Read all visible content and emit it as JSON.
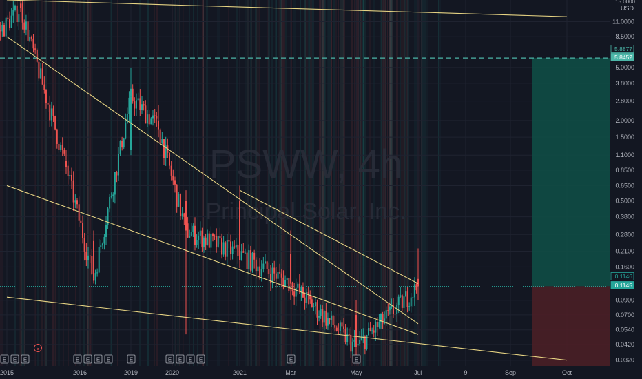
{
  "chart_data": {
    "type": "candlestick",
    "title": "",
    "watermark": {
      "symbol": "PSWW, 4h",
      "company": "Principal Solar, Inc."
    },
    "yaxis": {
      "scale": "log",
      "currency": "USD",
      "top_label": "15.0000",
      "ticks": [
        "11.0000",
        "8.5000",
        "5.0000",
        "3.8000",
        "2.8000",
        "2.0000",
        "1.5000",
        "1.1000",
        "0.8500",
        "0.6500",
        "0.5000",
        "0.3800",
        "0.2800",
        "0.2100",
        "0.1600",
        "0.0900",
        "0.0700",
        "0.0540",
        "0.0420",
        "0.0320"
      ],
      "range": [
        0.029,
        16
      ]
    },
    "xaxis": {
      "ticks": [
        "2015",
        "2016",
        "2019",
        "2020",
        "2021",
        "Mar",
        "May",
        "Jul",
        "9",
        "Sep",
        "Oct"
      ]
    },
    "price_labels": {
      "target_high": "5.8877",
      "target_low": "5.8452",
      "last_price": "0.1146",
      "last_price_2": "0.1145"
    },
    "position": {
      "type": "long",
      "entry": 0.1146,
      "target": 5.8877,
      "stop": 0.029
    },
    "candles_sampled": [
      {
        "t": "2015",
        "o": 8.0,
        "h": 9.0,
        "l": 7.5,
        "c": 8.2
      },
      {
        "t": "2015",
        "o": 15.0,
        "h": 16.0,
        "l": 13.0,
        "c": 14.0
      },
      {
        "t": "2016",
        "o": 1.0,
        "h": 1.2,
        "l": 0.8,
        "c": 0.9
      },
      {
        "t": "2016",
        "o": 0.25,
        "h": 0.3,
        "l": 0.12,
        "c": 0.13
      },
      {
        "t": "2019",
        "o": 1.2,
        "h": 5.0,
        "l": 1.1,
        "c": 3.0
      },
      {
        "t": "2020",
        "o": 2.0,
        "h": 2.6,
        "l": 1.5,
        "c": 1.8
      },
      {
        "t": "2020",
        "o": 0.5,
        "h": 0.6,
        "l": 0.05,
        "c": 0.3
      },
      {
        "t": "2021",
        "o": 0.5,
        "h": 0.65,
        "l": 0.16,
        "c": 0.2
      },
      {
        "t": "Mar",
        "o": 0.2,
        "h": 0.3,
        "l": 0.09,
        "c": 0.12
      },
      {
        "t": "May",
        "o": 0.07,
        "h": 0.09,
        "l": 0.035,
        "c": 0.04
      },
      {
        "t": "Jul",
        "o": 0.13,
        "h": 0.22,
        "l": 0.09,
        "c": 0.1146
      }
    ],
    "trendlines": [
      {
        "from": [
          "2015",
          8.5
        ],
        "to": [
          "Jul",
          0.06
        ]
      },
      {
        "from": [
          "2015",
          0.65
        ],
        "to": [
          "Jul",
          0.05
        ]
      },
      {
        "from": [
          "2015",
          0.095
        ],
        "to": [
          "Oct",
          0.032
        ]
      },
      {
        "from": [
          "2021",
          0.6
        ],
        "to": [
          "Jul",
          0.12
        ]
      },
      {
        "from": [
          "2015",
          16.0
        ],
        "to": [
          "Oct",
          12.0
        ]
      }
    ],
    "event_markers": {
      "earnings_label": "E",
      "split_label": "S",
      "earnings_at": [
        "2015",
        "2015",
        "2015",
        "2016",
        "2016",
        "2016",
        "2016",
        "2019",
        "2020",
        "2020",
        "2020",
        "2020",
        "Mar",
        "May"
      ],
      "split_at": [
        "2015"
      ]
    },
    "grid": true,
    "colors": {
      "background": "#131722",
      "up": "#26a69a",
      "down": "#ef5350",
      "trendline": "#e6d383",
      "profit_zone": "#0f4c45",
      "loss_zone": "#4a1f26",
      "target_line": "#4cb6a8",
      "axis_text": "#b2b5be",
      "label_green": "#26a69a"
    }
  }
}
